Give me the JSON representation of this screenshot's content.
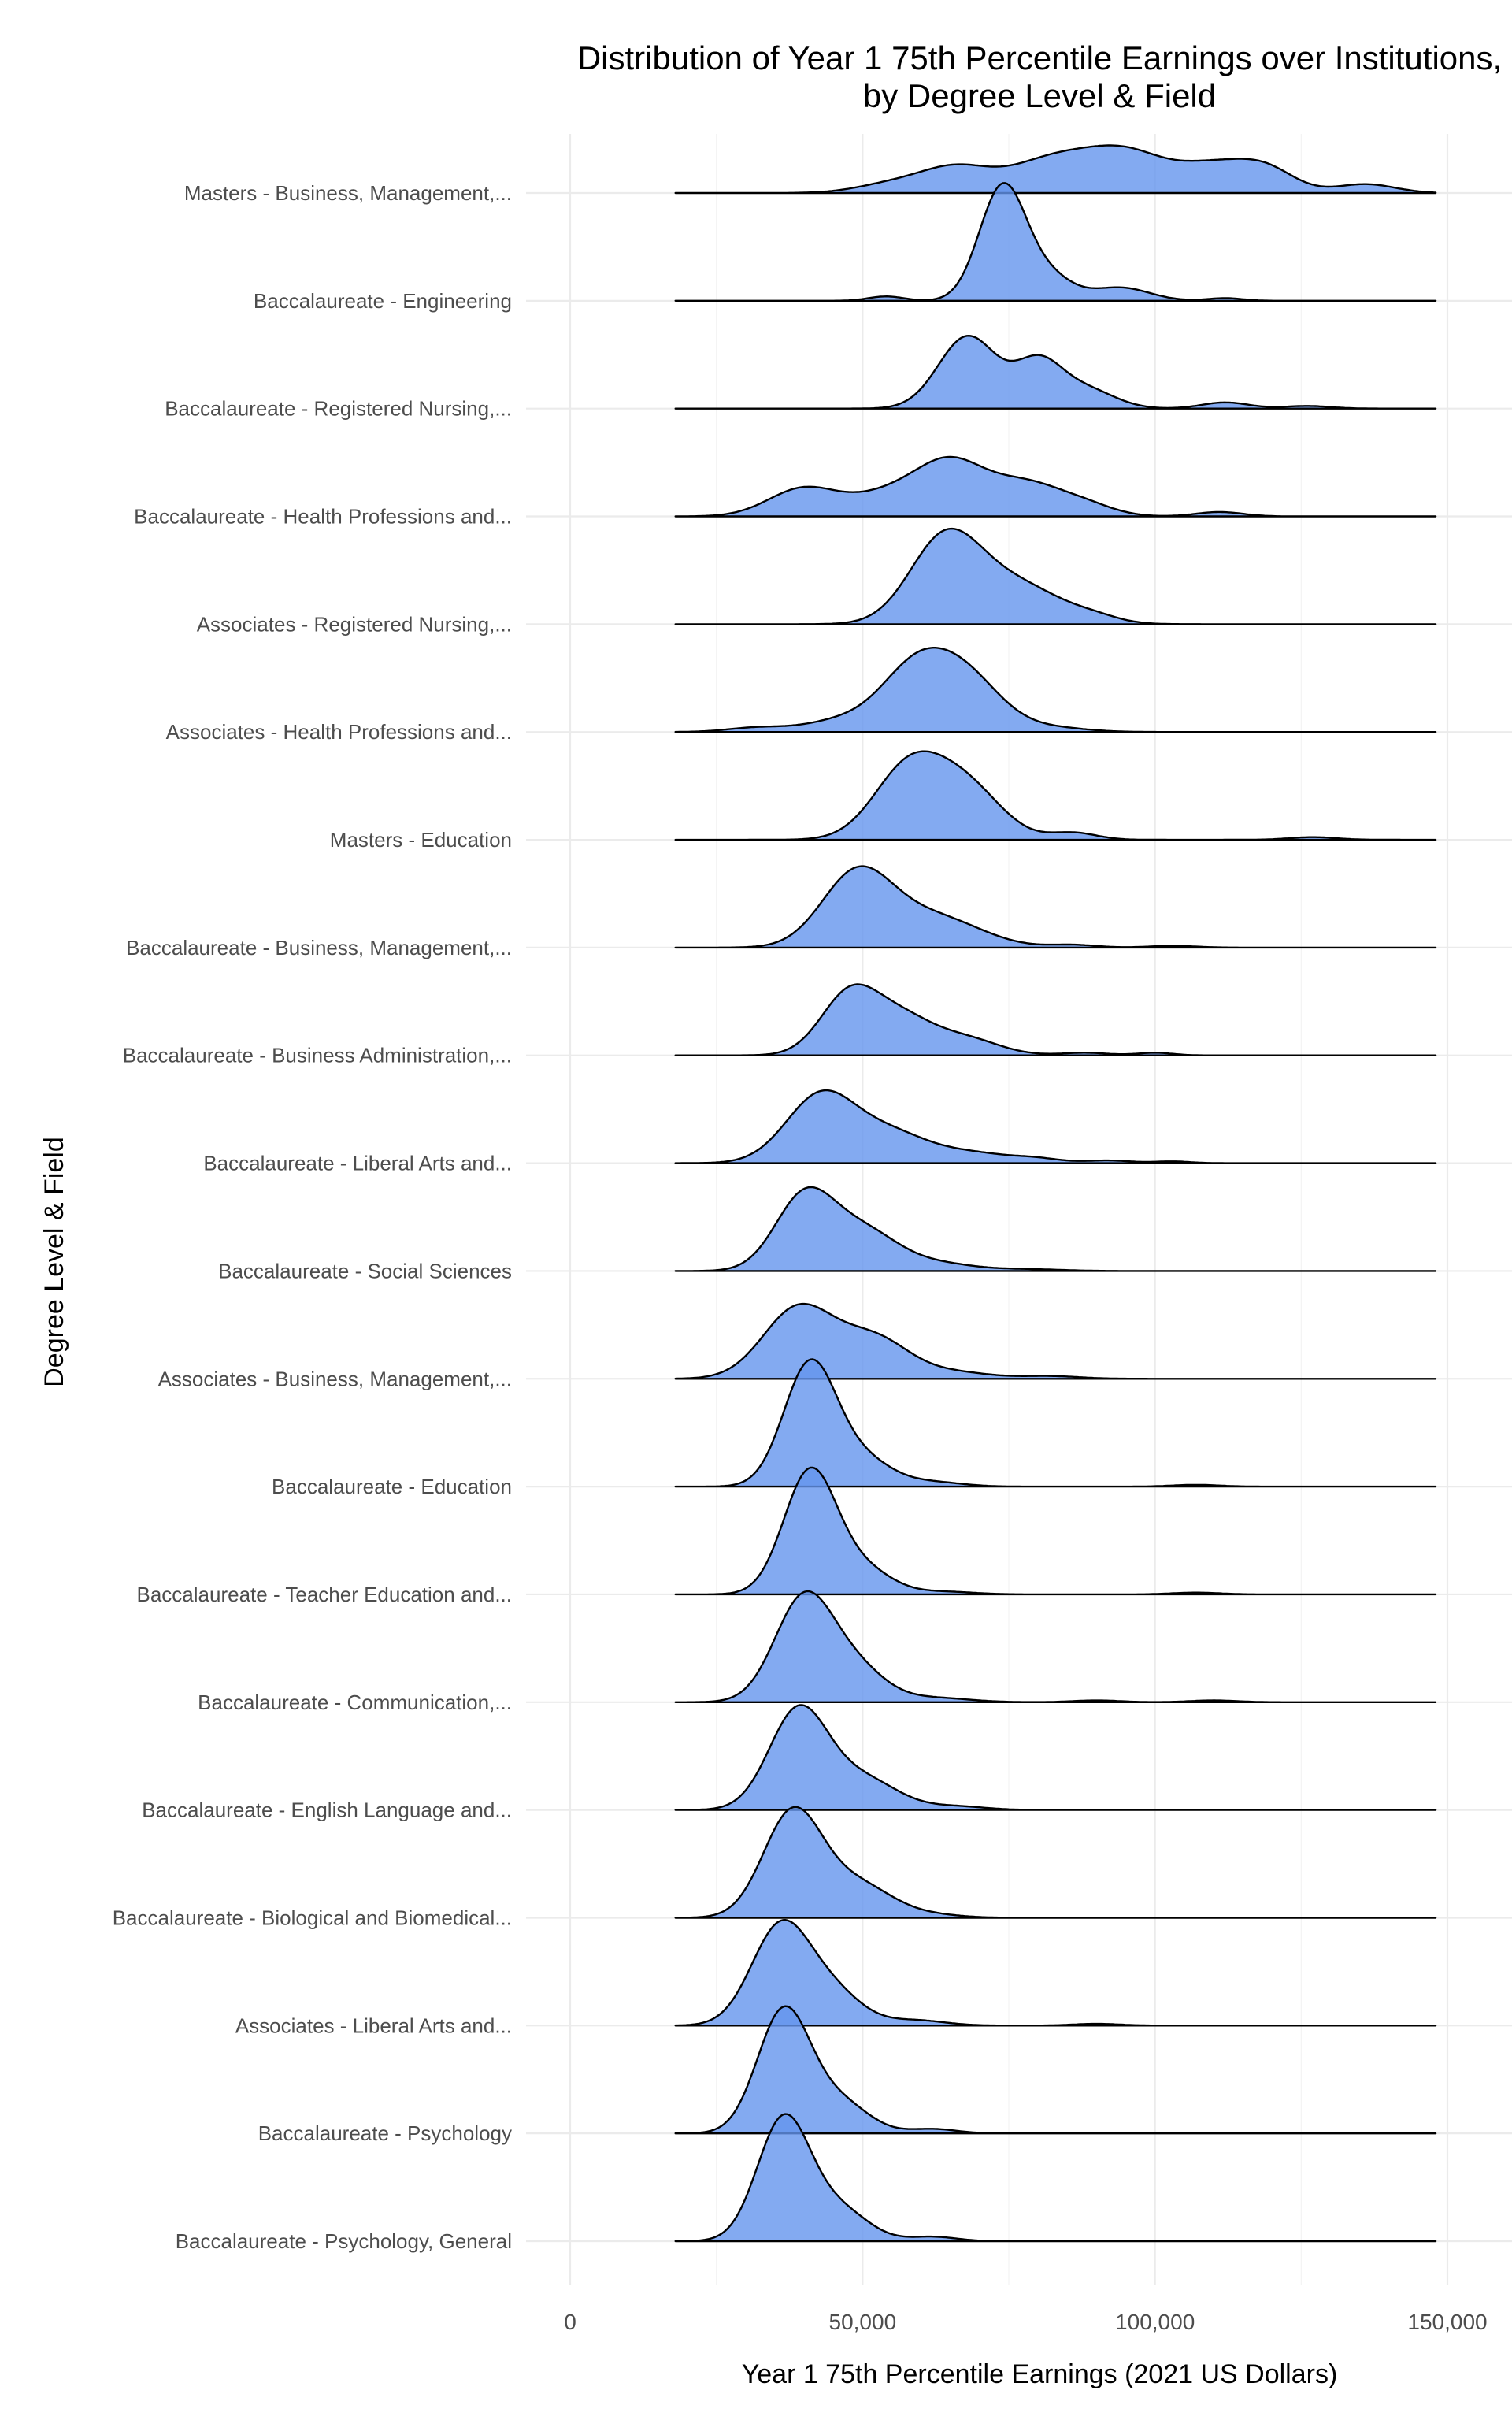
{
  "chart_data": {
    "type": "ridgeline",
    "title_line1": "Distribution of Year 1 75th Percentile Earnings over Institutions,",
    "title_line2": "by Degree Level & Field",
    "xlabel": "Year 1 75th Percentile Earnings (2021 US Dollars)",
    "ylabel": "Degree Level & Field",
    "xlim": [
      0,
      150000
    ],
    "x_ticks": [
      {
        "value": 0,
        "label": "0"
      },
      {
        "value": 50000,
        "label": "50,000"
      },
      {
        "value": 100000,
        "label": "100,000"
      },
      {
        "value": 150000,
        "label": "150,000"
      }
    ],
    "x_range_of_density": [
      18000,
      148000
    ],
    "fill_color": "#6495ED",
    "line_color": "#000000",
    "grid": true,
    "series": [
      {
        "name": "Masters - Business, Management,...",
        "peaks": [
          [
            55000,
            0.1,
            6000
          ],
          [
            66000,
            0.28,
            6000
          ],
          [
            82000,
            0.35,
            7000
          ],
          [
            95000,
            0.45,
            7000
          ],
          [
            110000,
            0.28,
            6000
          ],
          [
            119000,
            0.25,
            5000
          ],
          [
            136000,
            0.1,
            5000
          ]
        ]
      },
      {
        "name": "Baccalaureate - Engineering",
        "peaks": [
          [
            54000,
            0.05,
            3000
          ],
          [
            74000,
            1.3,
            4000
          ],
          [
            82000,
            0.25,
            4000
          ],
          [
            94000,
            0.15,
            5000
          ],
          [
            112000,
            0.03,
            3000
          ]
        ]
      },
      {
        "name": "Baccalaureate - Registered Nursing,...",
        "peaks": [
          [
            68000,
            0.82,
            5000
          ],
          [
            80000,
            0.5,
            4000
          ],
          [
            88000,
            0.22,
            5000
          ],
          [
            112000,
            0.07,
            4000
          ],
          [
            126000,
            0.03,
            4000
          ]
        ]
      },
      {
        "name": "Baccalaureate - Health Professions and...",
        "peaks": [
          [
            40000,
            0.32,
            6000
          ],
          [
            54000,
            0.22,
            6000
          ],
          [
            65000,
            0.6,
            6000
          ],
          [
            78000,
            0.35,
            6000
          ],
          [
            88000,
            0.12,
            5000
          ],
          [
            111000,
            0.05,
            4000
          ]
        ]
      },
      {
        "name": "Associates - Registered Nursing,...",
        "peaks": [
          [
            64000,
            0.92,
            6000
          ],
          [
            76000,
            0.45,
            8000
          ],
          [
            90000,
            0.05,
            4000
          ]
        ]
      },
      {
        "name": "Associates - Health Professions and...",
        "peaks": [
          [
            32000,
            0.05,
            5000
          ],
          [
            46000,
            0.12,
            6000
          ],
          [
            59000,
            0.7,
            6000
          ],
          [
            68000,
            0.55,
            6000
          ],
          [
            82000,
            0.05,
            6000
          ]
        ]
      },
      {
        "name": "Masters - Education",
        "peaks": [
          [
            58000,
            0.82,
            6000
          ],
          [
            68000,
            0.55,
            6000
          ],
          [
            86000,
            0.08,
            4000
          ],
          [
            127000,
            0.03,
            4000
          ]
        ]
      },
      {
        "name": "Baccalaureate - Business, Management,...",
        "peaks": [
          [
            49000,
            0.82,
            6000
          ],
          [
            62000,
            0.35,
            8000
          ],
          [
            86000,
            0.03,
            4000
          ],
          [
            103000,
            0.02,
            4000
          ]
        ]
      },
      {
        "name": "Baccalaureate - Business Administration,...",
        "peaks": [
          [
            48000,
            0.72,
            5000
          ],
          [
            57000,
            0.35,
            5000
          ],
          [
            67000,
            0.2,
            6000
          ],
          [
            88000,
            0.03,
            4000
          ],
          [
            100000,
            0.03,
            3000
          ]
        ]
      },
      {
        "name": "Baccalaureate - Liberal Arts and...",
        "peaks": [
          [
            43000,
            0.78,
            6000
          ],
          [
            55000,
            0.3,
            6000
          ],
          [
            68000,
            0.12,
            7000
          ],
          [
            80000,
            0.04,
            4000
          ],
          [
            92000,
            0.03,
            4000
          ],
          [
            103000,
            0.02,
            3000
          ]
        ]
      },
      {
        "name": "Baccalaureate - Social Sciences",
        "peaks": [
          [
            40000,
            0.82,
            5000
          ],
          [
            50000,
            0.45,
            6000
          ],
          [
            63000,
            0.08,
            6000
          ],
          [
            78000,
            0.02,
            6000
          ]
        ]
      },
      {
        "name": "Associates - Business, Management,...",
        "peaks": [
          [
            39000,
            0.8,
            6000
          ],
          [
            52000,
            0.45,
            6000
          ],
          [
            66000,
            0.07,
            6000
          ],
          [
            82000,
            0.03,
            5000
          ]
        ]
      },
      {
        "name": "Baccalaureate - Education",
        "peaks": [
          [
            41000,
            1.38,
            4500
          ],
          [
            50000,
            0.3,
            5000
          ],
          [
            62000,
            0.05,
            5000
          ],
          [
            107000,
            0.02,
            4000
          ]
        ]
      },
      {
        "name": "Baccalaureate - Teacher Education and...",
        "peaks": [
          [
            41000,
            1.38,
            4500
          ],
          [
            50000,
            0.28,
            5000
          ],
          [
            64000,
            0.03,
            5000
          ],
          [
            107000,
            0.02,
            4000
          ]
        ]
      },
      {
        "name": "Baccalaureate - Communication,...",
        "peaks": [
          [
            40000,
            1.18,
            5000
          ],
          [
            49000,
            0.35,
            5000
          ],
          [
            62000,
            0.05,
            6000
          ],
          [
            90000,
            0.02,
            4000
          ],
          [
            110000,
            0.02,
            4000
          ]
        ]
      },
      {
        "name": "Baccalaureate - English Language and...",
        "peaks": [
          [
            39000,
            1.12,
            5000
          ],
          [
            50000,
            0.35,
            6000
          ],
          [
            66000,
            0.04,
            5000
          ]
        ]
      },
      {
        "name": "Baccalaureate - Biological and Biomedical...",
        "peaks": [
          [
            38000,
            1.18,
            5000
          ],
          [
            49000,
            0.38,
            6000
          ],
          [
            62000,
            0.03,
            5000
          ]
        ]
      },
      {
        "name": "Associates - Liberal Arts and...",
        "peaks": [
          [
            36000,
            1.12,
            5000
          ],
          [
            45000,
            0.35,
            5000
          ],
          [
            59000,
            0.06,
            5000
          ],
          [
            90000,
            0.02,
            4000
          ]
        ]
      },
      {
        "name": "Baccalaureate - Psychology",
        "peaks": [
          [
            36500,
            1.38,
            4500
          ],
          [
            46000,
            0.35,
            5000
          ],
          [
            62000,
            0.05,
            4000
          ]
        ]
      },
      {
        "name": "Baccalaureate - Psychology, General",
        "peaks": [
          [
            36500,
            1.38,
            4500
          ],
          [
            46000,
            0.35,
            5000
          ],
          [
            62000,
            0.05,
            4000
          ]
        ]
      }
    ]
  }
}
